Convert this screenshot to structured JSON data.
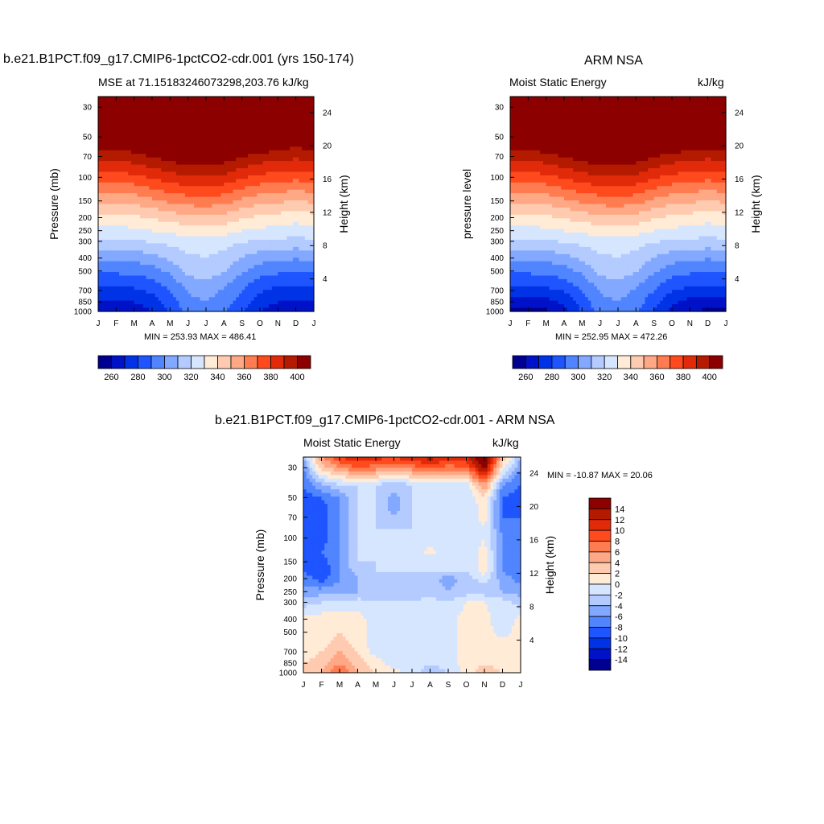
{
  "levels": [
    -14,
    -12,
    -10,
    -8,
    -6,
    -4,
    -2,
    0,
    2,
    4,
    6,
    8,
    10,
    12,
    14
  ],
  "mse_levels": [
    260,
    270,
    280,
    290,
    300,
    310,
    320,
    330,
    340,
    350,
    360,
    370,
    380,
    390,
    400
  ],
  "colors": [
    "#000090",
    "#0012C8",
    "#0032E6",
    "#1E55FF",
    "#5085FF",
    "#82A8FF",
    "#B3CBFF",
    "#D6E6FF",
    "#FFEBD6",
    "#FFCBB0",
    "#FFA886",
    "#FF7C50",
    "#FF4A1E",
    "#E12A0A",
    "#B41A00",
    "#8C0000"
  ],
  "panel1": {
    "main_title": "b.e21.B1PCT.f09_g17.CMIP6-1pctCO2-cdr.001 (yrs 150-174)",
    "left_label": "MSE at 71.15183246073298,203.76",
    "right_label": "kJ/kg",
    "minmax": "MIN = 253.93 MAX = 486.41",
    "y_title": "Pressure (mb)",
    "y2_title": "Height (km)"
  },
  "panel2": {
    "main_title": "ARM NSA",
    "left_label": "Moist Static Energy",
    "right_label": "kJ/kg",
    "minmax": "MIN = 252.95 MAX = 472.26",
    "y_title": "pressure level",
    "y2_title": "Height (km)"
  },
  "panel3": {
    "main_title": "b.e21.B1PCT.f09_g17.CMIP6-1pctCO2-cdr.001 - ARM NSA",
    "left_label": "Moist Static Energy",
    "right_label": "kJ/kg",
    "minmax": "MIN = -10.87 MAX =  20.06",
    "y_title": "Pressure (mb)",
    "y2_title": "Height (km)"
  },
  "chart_data": [
    {
      "type": "heatmap",
      "title": "b.e21.B1PCT.f09_g17.CMIP6-1pctCO2-cdr.001 (yrs 150-174)",
      "subtitle": "MSE at 71.15183246073298,203.76",
      "units": "kJ/kg",
      "x_ticks": [
        "J",
        "F",
        "M",
        "A",
        "M",
        "J",
        "J",
        "A",
        "S",
        "O",
        "N",
        "D",
        "J"
      ],
      "y_ticks": [
        30,
        50,
        70,
        100,
        150,
        200,
        250,
        300,
        400,
        500,
        700,
        850,
        1000
      ],
      "y_scale": "log",
      "ylim": [
        1000,
        25
      ],
      "y2_ticks": [
        4,
        8,
        12,
        16,
        20,
        24
      ],
      "xlabel": "",
      "ylabel": "Pressure (mb)",
      "y2label": "Height (km)",
      "colorbar_labels": [
        260,
        280,
        300,
        320,
        340,
        360,
        380,
        400
      ],
      "min": 253.93,
      "max": 486.41,
      "x": [
        0,
        1,
        2,
        3,
        4,
        5,
        6,
        7,
        8,
        9,
        10,
        11,
        12
      ],
      "levels_mb": [
        25,
        30,
        40,
        50,
        60,
        70,
        85,
        100,
        125,
        150,
        175,
        200,
        250,
        300,
        400,
        500,
        600,
        700,
        850,
        1000
      ],
      "values": [
        [
          480,
          485,
          485,
          484,
          484,
          483,
          483,
          483,
          484,
          484,
          485,
          485,
          480
        ],
        [
          470,
          475,
          476,
          475,
          474,
          473,
          473,
          473,
          474,
          475,
          476,
          475,
          470
        ],
        [
          455,
          460,
          460,
          458,
          456,
          455,
          455,
          455,
          456,
          458,
          460,
          460,
          455
        ],
        [
          425,
          425,
          428,
          430,
          430,
          430,
          430,
          430,
          430,
          428,
          425,
          425,
          425
        ],
        [
          402,
          402,
          405,
          415,
          420,
          422,
          422,
          420,
          415,
          408,
          402,
          400,
          402
        ],
        [
          394,
          394,
          396,
          400,
          406,
          408,
          410,
          406,
          400,
          396,
          394,
          392,
          394
        ],
        [
          384,
          384,
          386,
          390,
          394,
          397,
          398,
          396,
          390,
          386,
          384,
          382,
          384
        ],
        [
          375,
          375,
          377,
          381,
          386,
          388,
          389,
          387,
          381,
          377,
          375,
          373,
          375
        ],
        [
          362,
          362,
          364,
          368,
          373,
          375,
          376,
          374,
          368,
          364,
          362,
          360,
          362
        ],
        [
          352,
          352,
          354,
          358,
          362,
          365,
          366,
          364,
          358,
          354,
          352,
          350,
          352
        ],
        [
          343,
          343,
          345,
          348,
          352,
          355,
          356,
          354,
          348,
          345,
          343,
          341,
          343
        ],
        [
          336,
          336,
          338,
          341,
          344,
          347,
          348,
          346,
          341,
          338,
          336,
          334,
          336
        ],
        [
          326,
          326,
          328,
          330,
          333,
          335,
          336,
          334,
          330,
          328,
          326,
          325,
          326
        ],
        [
          318,
          318,
          319,
          321,
          323,
          325,
          326,
          324,
          321,
          319,
          318,
          317,
          318
        ],
        [
          302,
          302,
          303,
          306,
          312,
          318,
          320,
          316,
          309,
          304,
          302,
          301,
          302
        ],
        [
          292,
          292,
          293,
          296,
          302,
          313,
          316,
          311,
          302,
          295,
          292,
          291,
          292
        ],
        [
          284,
          284,
          285,
          288,
          295,
          306,
          309,
          304,
          294,
          287,
          284,
          283,
          284
        ],
        [
          277,
          277,
          278,
          282,
          290,
          301,
          304,
          299,
          290,
          281,
          277,
          276,
          277
        ],
        [
          270,
          269,
          270,
          275,
          285,
          297,
          300,
          295,
          285,
          275,
          270,
          269,
          270
        ],
        [
          262,
          262,
          263,
          270,
          281,
          294,
          297,
          292,
          281,
          270,
          265,
          263,
          262
        ]
      ]
    },
    {
      "type": "heatmap",
      "title": "ARM NSA",
      "subtitle": "Moist Static Energy",
      "units": "kJ/kg",
      "x_ticks": [
        "J",
        "F",
        "M",
        "A",
        "M",
        "J",
        "J",
        "A",
        "S",
        "O",
        "N",
        "D",
        "J"
      ],
      "y_ticks": [
        30,
        50,
        70,
        100,
        150,
        200,
        250,
        300,
        400,
        500,
        700,
        850,
        1000
      ],
      "y_scale": "log",
      "ylim": [
        1000,
        25
      ],
      "y2_ticks": [
        4,
        8,
        12,
        16,
        20,
        24
      ],
      "xlabel": "",
      "ylabel": "pressure level",
      "y2label": "Height (km)",
      "colorbar_labels": [
        260,
        280,
        300,
        320,
        340,
        360,
        380,
        400
      ],
      "min": 252.95,
      "max": 472.26,
      "x": [
        0,
        1,
        2,
        3,
        4,
        5,
        6,
        7,
        8,
        9,
        10,
        11,
        12
      ],
      "levels_mb": [
        25,
        30,
        40,
        50,
        60,
        70,
        85,
        100,
        125,
        150,
        175,
        200,
        250,
        300,
        400,
        500,
        600,
        700,
        850,
        1000
      ],
      "values": [
        [
          470,
          472,
          472,
          471,
          470,
          470,
          470,
          470,
          470,
          471,
          472,
          472,
          470
        ],
        [
          462,
          464,
          464,
          463,
          462,
          461,
          461,
          461,
          462,
          463,
          464,
          464,
          462
        ],
        [
          448,
          450,
          450,
          449,
          448,
          447,
          447,
          447,
          448,
          449,
          450,
          450,
          448
        ],
        [
          420,
          422,
          424,
          426,
          428,
          428,
          428,
          428,
          426,
          424,
          422,
          420,
          420
        ],
        [
          402,
          403,
          406,
          414,
          419,
          421,
          421,
          419,
          414,
          408,
          403,
          401,
          402
        ],
        [
          394,
          394,
          396,
          400,
          405,
          408,
          409,
          406,
          400,
          396,
          394,
          392,
          394
        ],
        [
          384,
          384,
          386,
          390,
          394,
          397,
          398,
          396,
          390,
          386,
          384,
          382,
          384
        ],
        [
          375,
          375,
          377,
          381,
          386,
          388,
          389,
          387,
          381,
          377,
          375,
          373,
          375
        ],
        [
          362,
          362,
          364,
          368,
          373,
          375,
          376,
          374,
          368,
          364,
          362,
          360,
          362
        ],
        [
          352,
          352,
          354,
          358,
          362,
          365,
          366,
          364,
          358,
          354,
          352,
          350,
          352
        ],
        [
          343,
          343,
          345,
          348,
          352,
          355,
          356,
          354,
          348,
          345,
          343,
          341,
          343
        ],
        [
          336,
          336,
          338,
          341,
          344,
          347,
          348,
          346,
          341,
          338,
          336,
          334,
          336
        ],
        [
          326,
          326,
          328,
          330,
          333,
          335,
          336,
          334,
          330,
          328,
          326,
          325,
          326
        ],
        [
          318,
          318,
          319,
          321,
          323,
          325,
          326,
          324,
          321,
          319,
          318,
          317,
          318
        ],
        [
          302,
          302,
          303,
          306,
          312,
          318,
          320,
          316,
          309,
          304,
          302,
          301,
          302
        ],
        [
          292,
          292,
          293,
          296,
          302,
          313,
          316,
          311,
          302,
          295,
          292,
          291,
          292
        ],
        [
          284,
          284,
          285,
          288,
          295,
          306,
          309,
          304,
          294,
          287,
          284,
          283,
          284
        ],
        [
          276,
          276,
          277,
          281,
          290,
          301,
          304,
          299,
          290,
          281,
          276,
          275,
          276
        ],
        [
          266,
          265,
          266,
          272,
          283,
          297,
          300,
          295,
          284,
          272,
          266,
          265,
          266
        ],
        [
          256,
          256,
          258,
          268,
          281,
          294,
          297,
          292,
          280,
          266,
          260,
          258,
          256
        ]
      ]
    },
    {
      "type": "heatmap",
      "title": "b.e21.B1PCT.f09_g17.CMIP6-1pctCO2-cdr.001 - ARM NSA",
      "subtitle": "Moist Static Energy",
      "units": "kJ/kg",
      "x_ticks": [
        "J",
        "F",
        "M",
        "A",
        "M",
        "J",
        "J",
        "A",
        "S",
        "O",
        "N",
        "D",
        "J"
      ],
      "y_ticks": [
        30,
        50,
        70,
        100,
        150,
        200,
        250,
        300,
        400,
        500,
        700,
        850,
        1000
      ],
      "y_scale": "log",
      "ylim": [
        1000,
        25
      ],
      "y2_ticks": [
        4,
        8,
        12,
        16,
        20,
        24
      ],
      "xlabel": "",
      "ylabel": "Pressure (mb)",
      "y2label": "Height (km)",
      "colorbar_labels": [
        -14,
        -12,
        -10,
        -8,
        -6,
        -4,
        -2,
        0,
        2,
        4,
        6,
        8,
        10,
        12,
        14
      ],
      "min": -10.87,
      "max": 20.06,
      "x": [
        0,
        1,
        2,
        3,
        4,
        5,
        6,
        7,
        8,
        9,
        10,
        11,
        12
      ],
      "levels_mb": [
        25,
        30,
        40,
        50,
        60,
        70,
        85,
        100,
        125,
        150,
        175,
        200,
        250,
        300,
        400,
        500,
        600,
        700,
        850,
        1000
      ],
      "values": [
        [
          -4,
          6,
          10,
          12,
          11,
          10,
          12,
          13,
          12,
          12,
          18,
          4,
          -4
        ],
        [
          -6,
          3,
          6,
          8,
          7,
          6,
          7,
          8,
          7,
          8,
          15,
          1,
          -6
        ],
        [
          -8,
          -4,
          -2,
          -2,
          -2,
          -3,
          -2,
          -2,
          -2,
          -1,
          6,
          -6,
          -8
        ],
        [
          -9,
          -8,
          -6,
          -2,
          -2,
          -5,
          -2,
          -2,
          -2,
          -2,
          2,
          -8,
          -9
        ],
        [
          -9,
          -9,
          -6,
          -2,
          -2,
          -5,
          -2,
          -2,
          -2,
          -2,
          1,
          -8,
          -9
        ],
        [
          -8,
          -9,
          -6,
          -2,
          -2,
          -4,
          -2,
          -2,
          -2,
          -2,
          1,
          -8,
          -8
        ],
        [
          -8,
          -9,
          -6,
          -2,
          -2,
          -2,
          -2,
          -2,
          -2,
          -2,
          0,
          -7,
          -8
        ],
        [
          -8,
          -9,
          -6,
          -2,
          -2,
          -2,
          -2,
          -2,
          -2,
          -2,
          0,
          -6,
          -8
        ],
        [
          -8,
          -8,
          -6,
          -2,
          -2,
          -2,
          -2,
          1,
          -2,
          -2,
          1,
          -6,
          -8
        ],
        [
          -8,
          -9,
          -6,
          -2,
          -2,
          -2,
          -2,
          -2,
          -2,
          -2,
          1,
          -6,
          -8
        ],
        [
          -8,
          -10,
          -6,
          -3,
          -2,
          -2,
          -2,
          -2,
          -2,
          -2,
          1,
          -6,
          -8
        ],
        [
          -7,
          -9,
          -6,
          -4,
          -3,
          -3,
          -4,
          -3,
          -5,
          -3,
          -1,
          -5,
          -7
        ],
        [
          -5,
          -5,
          -5,
          -4,
          -4,
          -4,
          -3,
          -3,
          -4,
          -3,
          -3,
          -4,
          -5
        ],
        [
          -3,
          -2,
          -2,
          -1,
          -2,
          -2,
          -2,
          -1,
          -2,
          0,
          0,
          -1,
          -3
        ],
        [
          1,
          1,
          2,
          1,
          -1,
          -1,
          -1,
          -1,
          -1,
          1,
          1,
          -2,
          1
        ],
        [
          1,
          1,
          2,
          1,
          -1,
          -1,
          -1,
          -1,
          -1,
          1,
          1,
          -1,
          1
        ],
        [
          1,
          1,
          3,
          1,
          -1,
          -1,
          -1,
          -1,
          -1,
          1,
          1,
          1,
          1
        ],
        [
          1,
          2,
          4,
          2,
          -1,
          -1,
          -1,
          -1,
          -1,
          1,
          1,
          1,
          1
        ],
        [
          2,
          3,
          6,
          3,
          1,
          -1,
          -1,
          -2,
          -1,
          1,
          2,
          1,
          2
        ],
        [
          2,
          4,
          8,
          4,
          2,
          1,
          -1,
          -3,
          -2,
          1,
          3,
          2,
          2
        ]
      ]
    }
  ]
}
